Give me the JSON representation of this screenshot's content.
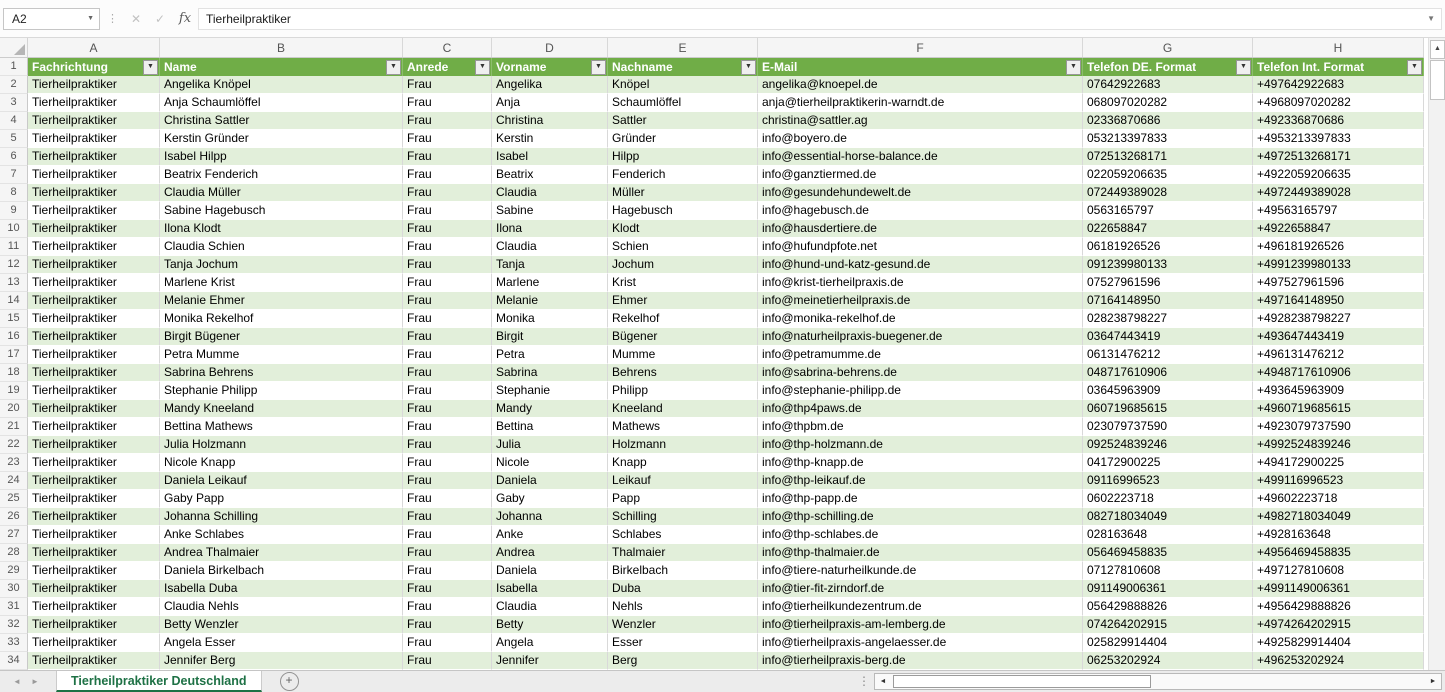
{
  "formula_bar": {
    "name_box_value": "A2",
    "formula_value": "Tierheilpraktiker"
  },
  "icons": {
    "dropdown": "▼",
    "cancel": "✕",
    "confirm": "✓",
    "fx": "fx",
    "up_arrow": "▲",
    "left_arrow": "◄",
    "right_arrow": "►",
    "nav_left": "◄",
    "nav_right": "►",
    "add_sheet": "+",
    "grip": "⋮"
  },
  "colors": {
    "header_green": "#70AD47",
    "band_green": "#E2EFDA",
    "tab_green": "#1E7145"
  },
  "sheet_bar": {
    "active_tab": "Tierheilpraktiker Deutschland"
  },
  "grid": {
    "column_letters": [
      "A",
      "B",
      "C",
      "D",
      "E",
      "F",
      "G",
      "H"
    ],
    "headers": [
      "Fachrichtung",
      "Name",
      "Anrede",
      "Vorname",
      "Nachname",
      "E-Mail",
      "Telefon DE. Format",
      "Telefon Int. Format"
    ],
    "row_numbers": [
      "1",
      "2",
      "3",
      "4",
      "5",
      "6",
      "7",
      "8",
      "9",
      "10",
      "11",
      "12",
      "13",
      "14",
      "15",
      "16",
      "17",
      "18",
      "19",
      "20",
      "21",
      "22",
      "23",
      "24",
      "25",
      "26",
      "27",
      "28",
      "29",
      "30",
      "31",
      "32",
      "33",
      "34"
    ],
    "rows": [
      [
        "Tierheilpraktiker",
        "Angelika Knöpel",
        "Frau",
        "Angelika",
        "Knöpel",
        "angelika@knoepel.de",
        "07642922683",
        "+497642922683"
      ],
      [
        "Tierheilpraktiker",
        "Anja Schaumlöffel",
        "Frau",
        "Anja",
        "Schaumlöffel",
        "anja@tierheilpraktikerin-warndt.de",
        "068097020282",
        "+4968097020282"
      ],
      [
        "Tierheilpraktiker",
        "Christina Sattler",
        "Frau",
        "Christina",
        "Sattler",
        "christina@sattler.ag",
        "02336870686",
        "+492336870686"
      ],
      [
        "Tierheilpraktiker",
        "Kerstin Gründer",
        "Frau",
        "Kerstin",
        "Gründer",
        "info@boyero.de",
        "053213397833",
        "+4953213397833"
      ],
      [
        "Tierheilpraktiker",
        "Isabel Hilpp",
        "Frau",
        "Isabel",
        "Hilpp",
        "info@essential-horse-balance.de",
        "072513268171",
        "+4972513268171"
      ],
      [
        "Tierheilpraktiker",
        "Beatrix Fenderich",
        "Frau",
        "Beatrix",
        "Fenderich",
        "info@ganztiermed.de",
        "022059206635",
        "+4922059206635"
      ],
      [
        "Tierheilpraktiker",
        "Claudia Müller",
        "Frau",
        "Claudia",
        "Müller",
        "info@gesundehundewelt.de",
        "072449389028",
        "+4972449389028"
      ],
      [
        "Tierheilpraktiker",
        "Sabine Hagebusch",
        "Frau",
        "Sabine",
        "Hagebusch",
        "info@hagebusch.de",
        "0563165797",
        "+49563165797"
      ],
      [
        "Tierheilpraktiker",
        "Ilona Klodt",
        "Frau",
        "Ilona",
        "Klodt",
        "info@hausdertiere.de",
        "022658847",
        "+4922658847"
      ],
      [
        "Tierheilpraktiker",
        "Claudia Schien",
        "Frau",
        "Claudia",
        "Schien",
        "info@hufundpfote.net",
        "06181926526",
        "+496181926526"
      ],
      [
        "Tierheilpraktiker",
        "Tanja Jochum",
        "Frau",
        "Tanja",
        "Jochum",
        "info@hund-und-katz-gesund.de",
        "091239980133",
        "+4991239980133"
      ],
      [
        "Tierheilpraktiker",
        "Marlene Krist",
        "Frau",
        "Marlene",
        "Krist",
        "info@krist-tierheilpraxis.de",
        "07527961596",
        "+497527961596"
      ],
      [
        "Tierheilpraktiker",
        "Melanie Ehmer",
        "Frau",
        "Melanie",
        "Ehmer",
        "info@meinetierheilpraxis.de",
        "07164148950",
        "+497164148950"
      ],
      [
        "Tierheilpraktiker",
        "Monika Rekelhof",
        "Frau",
        "Monika",
        "Rekelhof",
        "info@monika-rekelhof.de",
        "028238798227",
        "+4928238798227"
      ],
      [
        "Tierheilpraktiker",
        "Birgit Bügener",
        "Frau",
        "Birgit",
        "Bügener",
        "info@naturheilpraxis-buegener.de",
        "03647443419",
        "+493647443419"
      ],
      [
        "Tierheilpraktiker",
        "Petra Mumme",
        "Frau",
        "Petra",
        "Mumme",
        "info@petramumme.de",
        "06131476212",
        "+496131476212"
      ],
      [
        "Tierheilpraktiker",
        "Sabrina Behrens",
        "Frau",
        "Sabrina",
        "Behrens",
        "info@sabrina-behrens.de",
        "048717610906",
        "+4948717610906"
      ],
      [
        "Tierheilpraktiker",
        "Stephanie Philipp",
        "Frau",
        "Stephanie",
        "Philipp",
        "info@stephanie-philipp.de",
        "03645963909",
        "+493645963909"
      ],
      [
        "Tierheilpraktiker",
        "Mandy Kneeland",
        "Frau",
        "Mandy",
        "Kneeland",
        "info@thp4paws.de",
        "060719685615",
        "+4960719685615"
      ],
      [
        "Tierheilpraktiker",
        "Bettina Mathews",
        "Frau",
        "Bettina",
        "Mathews",
        "info@thpbm.de",
        "023079737590",
        "+4923079737590"
      ],
      [
        "Tierheilpraktiker",
        "Julia Holzmann",
        "Frau",
        "Julia",
        "Holzmann",
        "info@thp-holzmann.de",
        "092524839246",
        "+4992524839246"
      ],
      [
        "Tierheilpraktiker",
        "Nicole Knapp",
        "Frau",
        "Nicole",
        "Knapp",
        "info@thp-knapp.de",
        "04172900225",
        "+494172900225"
      ],
      [
        "Tierheilpraktiker",
        "Daniela Leikauf",
        "Frau",
        "Daniela",
        "Leikauf",
        "info@thp-leikauf.de",
        "09116996523",
        "+499116996523"
      ],
      [
        "Tierheilpraktiker",
        "Gaby Papp",
        "Frau",
        "Gaby",
        "Papp",
        "info@thp-papp.de",
        "0602223718",
        "+49602223718"
      ],
      [
        "Tierheilpraktiker",
        "Johanna Schilling",
        "Frau",
        "Johanna",
        "Schilling",
        "info@thp-schilling.de",
        "082718034049",
        "+4982718034049"
      ],
      [
        "Tierheilpraktiker",
        "Anke Schlabes",
        "Frau",
        "Anke",
        "Schlabes",
        "info@thp-schlabes.de",
        "028163648",
        "+4928163648"
      ],
      [
        "Tierheilpraktiker",
        "Andrea Thalmaier",
        "Frau",
        "Andrea",
        "Thalmaier",
        "info@thp-thalmaier.de",
        "056469458835",
        "+4956469458835"
      ],
      [
        "Tierheilpraktiker",
        "Daniela Birkelbach",
        "Frau",
        "Daniela",
        "Birkelbach",
        "info@tiere-naturheilkunde.de",
        "07127810608",
        "+497127810608"
      ],
      [
        "Tierheilpraktiker",
        "Isabella Duba",
        "Frau",
        "Isabella",
        "Duba",
        "info@tier-fit-zirndorf.de",
        "091149006361",
        "+4991149006361"
      ],
      [
        "Tierheilpraktiker",
        "Claudia Nehls",
        "Frau",
        "Claudia",
        "Nehls",
        "info@tierheilkundezentrum.de",
        "056429888826",
        "+4956429888826"
      ],
      [
        "Tierheilpraktiker",
        "Betty Wenzler",
        "Frau",
        "Betty",
        "Wenzler",
        "info@tierheilpraxis-am-lemberg.de",
        "074264202915",
        "+4974264202915"
      ],
      [
        "Tierheilpraktiker",
        "Angela Esser",
        "Frau",
        "Angela",
        "Esser",
        "info@tierheilpraxis-angelaesser.de",
        "025829914404",
        "+4925829914404"
      ],
      [
        "Tierheilpraktiker",
        "Jennifer Berg",
        "Frau",
        "Jennifer",
        "Berg",
        "info@tierheilpraxis-berg.de",
        "06253202924",
        "+496253202924"
      ]
    ]
  }
}
